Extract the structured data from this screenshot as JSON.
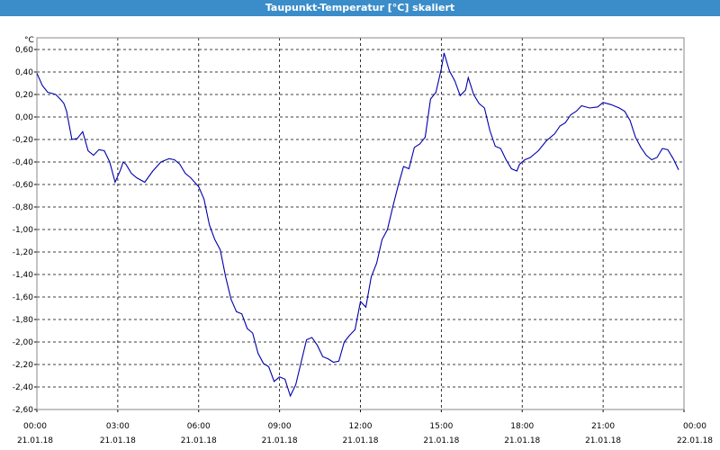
{
  "window": {
    "title": "Taupunkt-Temperatur [°C] skaliert"
  },
  "chart_data": {
    "type": "line",
    "title": "Taupunkt-Temperatur [°C] skaliert",
    "ylabel": "°C",
    "xlabel": "",
    "grid": true,
    "ylim": [
      -2.6,
      0.6
    ],
    "xlim_hours": [
      0,
      24
    ],
    "yticks": [
      "0,60",
      "0,40",
      "0,20",
      "0,00",
      "-0,20",
      "-0,40",
      "-0,60",
      "-0,80",
      "-1,00",
      "-1,20",
      "-1,40",
      "-1,60",
      "-1,80",
      "-2,00",
      "-2,20",
      "-2,40",
      "-2,60"
    ],
    "xticks": [
      {
        "time": "00:00",
        "date": "21.01.18"
      },
      {
        "time": "03:00",
        "date": "21.01.18"
      },
      {
        "time": "06:00",
        "date": "21.01.18"
      },
      {
        "time": "09:00",
        "date": "21.01.18"
      },
      {
        "time": "12:00",
        "date": "21.01.18"
      },
      {
        "time": "15:00",
        "date": "21.01.18"
      },
      {
        "time": "18:00",
        "date": "21.01.18"
      },
      {
        "time": "21:00",
        "date": "21.01.18"
      },
      {
        "time": "00:00",
        "date": "22.01.18"
      }
    ],
    "series": [
      {
        "color": "#0000aa",
        "points": [
          [
            0.0,
            0.39
          ],
          [
            0.2,
            0.28
          ],
          [
            0.4,
            0.22
          ],
          [
            0.7,
            0.2
          ],
          [
            0.9,
            0.15
          ],
          [
            1.0,
            0.12
          ],
          [
            1.1,
            0.05
          ],
          [
            1.3,
            -0.2
          ],
          [
            1.5,
            -0.19
          ],
          [
            1.7,
            -0.13
          ],
          [
            1.9,
            -0.3
          ],
          [
            2.1,
            -0.34
          ],
          [
            2.3,
            -0.29
          ],
          [
            2.5,
            -0.3
          ],
          [
            2.7,
            -0.4
          ],
          [
            2.9,
            -0.58
          ],
          [
            3.1,
            -0.47
          ],
          [
            3.2,
            -0.4
          ],
          [
            3.3,
            -0.42
          ],
          [
            3.5,
            -0.5
          ],
          [
            3.7,
            -0.54
          ],
          [
            4.0,
            -0.58
          ],
          [
            4.3,
            -0.48
          ],
          [
            4.6,
            -0.4
          ],
          [
            4.9,
            -0.37
          ],
          [
            5.1,
            -0.38
          ],
          [
            5.3,
            -0.42
          ],
          [
            5.5,
            -0.5
          ],
          [
            5.7,
            -0.54
          ],
          [
            6.0,
            -0.62
          ],
          [
            6.2,
            -0.73
          ],
          [
            6.4,
            -0.96
          ],
          [
            6.6,
            -1.09
          ],
          [
            6.8,
            -1.18
          ],
          [
            7.0,
            -1.42
          ],
          [
            7.2,
            -1.62
          ],
          [
            7.4,
            -1.73
          ],
          [
            7.6,
            -1.75
          ],
          [
            7.8,
            -1.88
          ],
          [
            8.0,
            -1.92
          ],
          [
            8.2,
            -2.1
          ],
          [
            8.4,
            -2.19
          ],
          [
            8.6,
            -2.22
          ],
          [
            8.8,
            -2.35
          ],
          [
            9.0,
            -2.31
          ],
          [
            9.2,
            -2.33
          ],
          [
            9.4,
            -2.48
          ],
          [
            9.6,
            -2.38
          ],
          [
            9.8,
            -2.18
          ],
          [
            10.0,
            -1.98
          ],
          [
            10.2,
            -1.96
          ],
          [
            10.4,
            -2.03
          ],
          [
            10.6,
            -2.13
          ],
          [
            10.8,
            -2.15
          ],
          [
            11.0,
            -2.18
          ],
          [
            11.2,
            -2.17
          ],
          [
            11.4,
            -2.0
          ],
          [
            11.6,
            -1.94
          ],
          [
            11.8,
            -1.89
          ],
          [
            12.0,
            -1.64
          ],
          [
            12.2,
            -1.69
          ],
          [
            12.4,
            -1.42
          ],
          [
            12.6,
            -1.3
          ],
          [
            12.8,
            -1.09
          ],
          [
            13.0,
            -1.0
          ],
          [
            13.2,
            -0.8
          ],
          [
            13.4,
            -0.61
          ],
          [
            13.6,
            -0.44
          ],
          [
            13.8,
            -0.46
          ],
          [
            14.0,
            -0.27
          ],
          [
            14.2,
            -0.24
          ],
          [
            14.4,
            -0.18
          ],
          [
            14.6,
            0.16
          ],
          [
            14.8,
            0.22
          ],
          [
            15.0,
            0.43
          ],
          [
            15.1,
            0.57
          ],
          [
            15.3,
            0.41
          ],
          [
            15.5,
            0.32
          ],
          [
            15.7,
            0.19
          ],
          [
            15.9,
            0.24
          ],
          [
            16.0,
            0.35
          ],
          [
            16.2,
            0.2
          ],
          [
            16.4,
            0.12
          ],
          [
            16.6,
            0.08
          ],
          [
            16.8,
            -0.12
          ],
          [
            17.0,
            -0.26
          ],
          [
            17.2,
            -0.28
          ],
          [
            17.4,
            -0.38
          ],
          [
            17.6,
            -0.46
          ],
          [
            17.8,
            -0.48
          ],
          [
            17.9,
            -0.42
          ],
          [
            18.1,
            -0.38
          ],
          [
            18.3,
            -0.36
          ],
          [
            18.6,
            -0.3
          ],
          [
            18.9,
            -0.21
          ],
          [
            19.2,
            -0.15
          ],
          [
            19.4,
            -0.08
          ],
          [
            19.6,
            -0.05
          ],
          [
            19.8,
            0.02
          ],
          [
            20.0,
            0.05
          ],
          [
            20.2,
            0.1
          ],
          [
            20.5,
            0.08
          ],
          [
            20.8,
            0.09
          ],
          [
            21.0,
            0.13
          ],
          [
            21.3,
            0.11
          ],
          [
            21.6,
            0.08
          ],
          [
            21.8,
            0.05
          ],
          [
            22.0,
            -0.03
          ],
          [
            22.2,
            -0.18
          ],
          [
            22.4,
            -0.27
          ],
          [
            22.6,
            -0.34
          ],
          [
            22.8,
            -0.38
          ],
          [
            23.0,
            -0.36
          ],
          [
            23.2,
            -0.28
          ],
          [
            23.4,
            -0.29
          ],
          [
            23.6,
            -0.37
          ],
          [
            23.8,
            -0.47
          ]
        ]
      }
    ]
  }
}
